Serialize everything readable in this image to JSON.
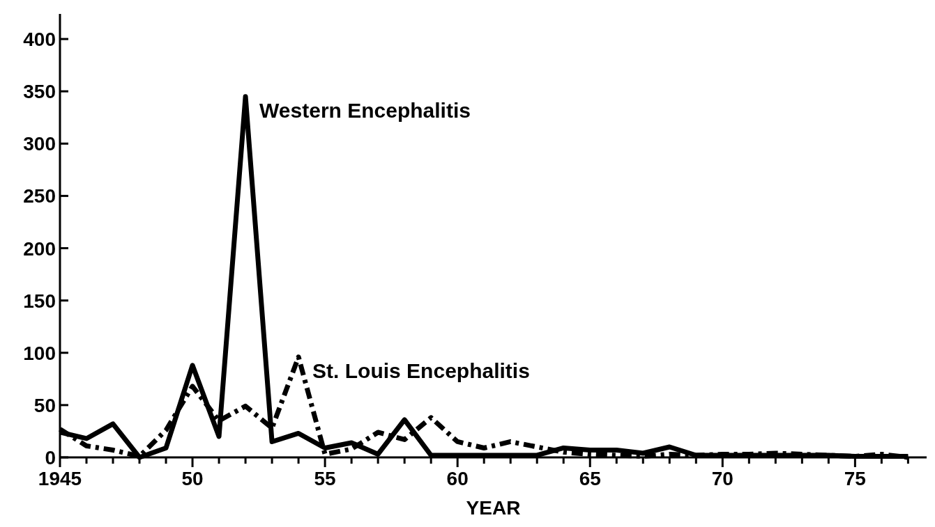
{
  "chart_data": {
    "type": "line",
    "xlabel": "YEAR",
    "x": [
      1945,
      1946,
      1947,
      1948,
      1949,
      1950,
      1951,
      1952,
      1953,
      1954,
      1955,
      1956,
      1957,
      1958,
      1959,
      1960,
      1961,
      1962,
      1963,
      1964,
      1965,
      1966,
      1967,
      1968,
      1969,
      1970,
      1971,
      1972,
      1973,
      1974,
      1975,
      1976,
      1977
    ],
    "series": [
      {
        "name": "Western Encephalitis",
        "color": "#000000",
        "line_style": "solid",
        "values": [
          24,
          18,
          32,
          0,
          9,
          88,
          20,
          345,
          15,
          23,
          9,
          14,
          3,
          36,
          2,
          2,
          2,
          2,
          2,
          9,
          7,
          7,
          4,
          10,
          2,
          2,
          2,
          2,
          2,
          2,
          1,
          1,
          1
        ]
      },
      {
        "name": "St. Louis Encephalitis",
        "color": "#000000",
        "line_style": "dashed",
        "values": [
          27,
          11,
          7,
          1,
          26,
          68,
          35,
          49,
          28,
          96,
          3,
          8,
          24,
          17,
          38,
          15,
          9,
          15,
          10,
          5,
          3,
          2,
          1,
          3,
          2,
          3,
          3,
          4,
          3,
          2,
          1,
          3,
          0
        ]
      }
    ],
    "xlim": [
      1945,
      1977.7
    ],
    "ylim": [
      0,
      424
    ],
    "xticks": [
      {
        "value": 1945,
        "label": "1945"
      },
      {
        "value": 1946,
        "label": null
      },
      {
        "value": 1947,
        "label": null
      },
      {
        "value": 1948,
        "label": null
      },
      {
        "value": 1949,
        "label": null
      },
      {
        "value": 1950,
        "label": "50"
      },
      {
        "value": 1951,
        "label": null
      },
      {
        "value": 1952,
        "label": null
      },
      {
        "value": 1953,
        "label": null
      },
      {
        "value": 1954,
        "label": null
      },
      {
        "value": 1955,
        "label": "55"
      },
      {
        "value": 1956,
        "label": null
      },
      {
        "value": 1957,
        "label": null
      },
      {
        "value": 1958,
        "label": null
      },
      {
        "value": 1959,
        "label": null
      },
      {
        "value": 1960,
        "label": "60"
      },
      {
        "value": 1961,
        "label": null
      },
      {
        "value": 1962,
        "label": null
      },
      {
        "value": 1963,
        "label": null
      },
      {
        "value": 1964,
        "label": null
      },
      {
        "value": 1965,
        "label": "65"
      },
      {
        "value": 1966,
        "label": null
      },
      {
        "value": 1967,
        "label": null
      },
      {
        "value": 1968,
        "label": null
      },
      {
        "value": 1969,
        "label": null
      },
      {
        "value": 1970,
        "label": "70"
      },
      {
        "value": 1971,
        "label": null
      },
      {
        "value": 1972,
        "label": null
      },
      {
        "value": 1973,
        "label": null
      },
      {
        "value": 1974,
        "label": null
      },
      {
        "value": 1975,
        "label": "75"
      },
      {
        "value": 1976,
        "label": null
      },
      {
        "value": 1977,
        "label": null
      }
    ],
    "yticks": [
      0,
      50,
      100,
      150,
      200,
      250,
      300,
      350,
      400
    ],
    "grid": false,
    "legend": false,
    "marker": "none"
  }
}
